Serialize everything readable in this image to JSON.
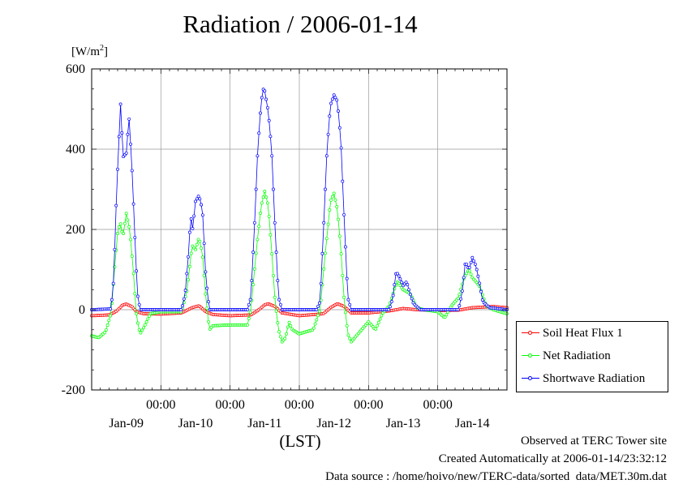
{
  "title": "Radiation / 2006-01-14",
  "unit_label": "[W/m2]",
  "x_axis_label": "(LST)",
  "footer": {
    "observed": "Observed at TERC Tower site",
    "created": "Created Automatically at 2006-01-14/23:32:12",
    "source": "Data source : /home/hoivo/new/TERC-data/sorted  data/MET.30m.dat"
  },
  "legend": [
    {
      "name": "Soil Heat Flux 1",
      "color": "#ff0000"
    },
    {
      "name": "Net Radiation",
      "color": "#00ff00"
    },
    {
      "name": "Shortwave Radiation",
      "color": "#0000ff"
    }
  ],
  "chart_data": {
    "type": "line",
    "title": "Radiation / 2006-01-14",
    "ylabel": "[W/m2]",
    "xlabel": "(LST)",
    "ylim": [
      -200,
      600
    ],
    "xlim_days": [
      0,
      6
    ],
    "y_ticks": [
      -200,
      0,
      200,
      400,
      600
    ],
    "x_ticks": [
      {
        "day": 1,
        "time": "00:00"
      },
      {
        "day": 2,
        "time": "00:00"
      },
      {
        "day": 3,
        "time": "00:00"
      },
      {
        "day": 4,
        "time": "00:00"
      },
      {
        "day": 5,
        "time": "00:00"
      }
    ],
    "day_labels": [
      {
        "day": 0.5,
        "label": "Jan-09"
      },
      {
        "day": 1.5,
        "label": "Jan-10"
      },
      {
        "day": 2.5,
        "label": "Jan-11"
      },
      {
        "day": 3.5,
        "label": "Jan-12"
      },
      {
        "day": 4.5,
        "label": "Jan-13"
      },
      {
        "day": 5.5,
        "label": "Jan-14"
      }
    ],
    "grid": true,
    "legend_position": "right",
    "series": [
      {
        "name": "Soil Heat Flux 1",
        "color": "#ff0000",
        "points": [
          [
            0,
            -15
          ],
          [
            0.25,
            -13
          ],
          [
            0.35,
            -5
          ],
          [
            0.45,
            12
          ],
          [
            0.5,
            14
          ],
          [
            0.58,
            8
          ],
          [
            0.65,
            -5
          ],
          [
            0.75,
            -10
          ],
          [
            1.0,
            -11
          ],
          [
            1.3,
            -8
          ],
          [
            1.45,
            5
          ],
          [
            1.55,
            10
          ],
          [
            1.65,
            -5
          ],
          [
            1.75,
            -12
          ],
          [
            2.0,
            -15
          ],
          [
            2.3,
            -13
          ],
          [
            2.4,
            -2
          ],
          [
            2.5,
            12
          ],
          [
            2.55,
            15
          ],
          [
            2.65,
            8
          ],
          [
            2.75,
            -8
          ],
          [
            3.0,
            -15
          ],
          [
            3.35,
            -10
          ],
          [
            3.45,
            5
          ],
          [
            3.55,
            15
          ],
          [
            3.65,
            8
          ],
          [
            3.75,
            -8
          ],
          [
            4.0,
            -8
          ],
          [
            4.3,
            -3
          ],
          [
            4.5,
            3
          ],
          [
            4.7,
            0
          ],
          [
            5.0,
            -2
          ],
          [
            5.3,
            -1
          ],
          [
            5.5,
            5
          ],
          [
            5.8,
            8
          ],
          [
            6.0,
            5
          ]
        ]
      },
      {
        "name": "Net Radiation",
        "color": "#00ff00",
        "points": [
          [
            0,
            -65
          ],
          [
            0.1,
            -70
          ],
          [
            0.2,
            -55
          ],
          [
            0.28,
            -10
          ],
          [
            0.32,
            80
          ],
          [
            0.38,
            200
          ],
          [
            0.42,
            215
          ],
          [
            0.45,
            180
          ],
          [
            0.5,
            240
          ],
          [
            0.55,
            200
          ],
          [
            0.6,
            100
          ],
          [
            0.65,
            -20
          ],
          [
            0.7,
            -60
          ],
          [
            0.75,
            -45
          ],
          [
            0.85,
            -10
          ],
          [
            1.0,
            -5
          ],
          [
            1.3,
            -5
          ],
          [
            1.38,
            50
          ],
          [
            1.45,
            160
          ],
          [
            1.5,
            150
          ],
          [
            1.55,
            180
          ],
          [
            1.6,
            140
          ],
          [
            1.65,
            30
          ],
          [
            1.7,
            -50
          ],
          [
            1.75,
            -40
          ],
          [
            2.0,
            -38
          ],
          [
            2.25,
            -38
          ],
          [
            2.3,
            0
          ],
          [
            2.38,
            150
          ],
          [
            2.45,
            260
          ],
          [
            2.5,
            295
          ],
          [
            2.55,
            260
          ],
          [
            2.6,
            150
          ],
          [
            2.65,
            20
          ],
          [
            2.7,
            -50
          ],
          [
            2.75,
            -80
          ],
          [
            2.8,
            -70
          ],
          [
            2.85,
            -30
          ],
          [
            2.9,
            -50
          ],
          [
            3.0,
            -60
          ],
          [
            3.2,
            -50
          ],
          [
            3.3,
            0
          ],
          [
            3.38,
            150
          ],
          [
            3.45,
            270
          ],
          [
            3.5,
            290
          ],
          [
            3.55,
            250
          ],
          [
            3.6,
            150
          ],
          [
            3.65,
            20
          ],
          [
            3.7,
            -60
          ],
          [
            3.75,
            -80
          ],
          [
            3.85,
            -60
          ],
          [
            4.0,
            -30
          ],
          [
            4.1,
            -50
          ],
          [
            4.2,
            -10
          ],
          [
            4.3,
            10
          ],
          [
            4.38,
            55
          ],
          [
            4.42,
            70
          ],
          [
            4.5,
            50
          ],
          [
            4.6,
            40
          ],
          [
            4.7,
            5
          ],
          [
            4.8,
            0
          ],
          [
            5.0,
            -5
          ],
          [
            5.1,
            -20
          ],
          [
            5.2,
            10
          ],
          [
            5.3,
            30
          ],
          [
            5.38,
            80
          ],
          [
            5.45,
            100
          ],
          [
            5.5,
            80
          ],
          [
            5.6,
            60
          ],
          [
            5.7,
            10
          ],
          [
            5.8,
            0
          ],
          [
            6.0,
            -10
          ]
        ]
      },
      {
        "name": "Shortwave Radiation",
        "color": "#0000ff",
        "points": [
          [
            0,
            0
          ],
          [
            0.28,
            2
          ],
          [
            0.32,
            80
          ],
          [
            0.36,
            290
          ],
          [
            0.38,
            370
          ],
          [
            0.42,
            525
          ],
          [
            0.45,
            380
          ],
          [
            0.5,
            390
          ],
          [
            0.54,
            480
          ],
          [
            0.58,
            360
          ],
          [
            0.62,
            200
          ],
          [
            0.66,
            40
          ],
          [
            0.7,
            0
          ],
          [
            1.0,
            0
          ],
          [
            1.3,
            0
          ],
          [
            1.35,
            40
          ],
          [
            1.4,
            140
          ],
          [
            1.43,
            235
          ],
          [
            1.46,
            200
          ],
          [
            1.5,
            270
          ],
          [
            1.55,
            285
          ],
          [
            1.6,
            250
          ],
          [
            1.65,
            80
          ],
          [
            1.7,
            0
          ],
          [
            2.0,
            0
          ],
          [
            2.25,
            0
          ],
          [
            2.3,
            30
          ],
          [
            2.35,
            200
          ],
          [
            2.4,
            400
          ],
          [
            2.45,
            520
          ],
          [
            2.48,
            550
          ],
          [
            2.5,
            545
          ],
          [
            2.55,
            495
          ],
          [
            2.6,
            400
          ],
          [
            2.65,
            200
          ],
          [
            2.7,
            30
          ],
          [
            2.75,
            0
          ],
          [
            3.0,
            0
          ],
          [
            3.25,
            0
          ],
          [
            3.3,
            20
          ],
          [
            3.35,
            200
          ],
          [
            3.4,
            400
          ],
          [
            3.45,
            510
          ],
          [
            3.5,
            535
          ],
          [
            3.55,
            520
          ],
          [
            3.6,
            420
          ],
          [
            3.65,
            220
          ],
          [
            3.7,
            30
          ],
          [
            3.75,
            0
          ],
          [
            4.0,
            0
          ],
          [
            4.3,
            0
          ],
          [
            4.35,
            30
          ],
          [
            4.4,
            95
          ],
          [
            4.45,
            80
          ],
          [
            4.5,
            60
          ],
          [
            4.55,
            70
          ],
          [
            4.6,
            40
          ],
          [
            4.65,
            15
          ],
          [
            4.75,
            0
          ],
          [
            5.0,
            0
          ],
          [
            5.3,
            0
          ],
          [
            5.35,
            40
          ],
          [
            5.4,
            120
          ],
          [
            5.45,
            100
          ],
          [
            5.5,
            130
          ],
          [
            5.55,
            110
          ],
          [
            5.6,
            70
          ],
          [
            5.65,
            20
          ],
          [
            5.75,
            5
          ],
          [
            6.0,
            0
          ]
        ]
      }
    ]
  }
}
